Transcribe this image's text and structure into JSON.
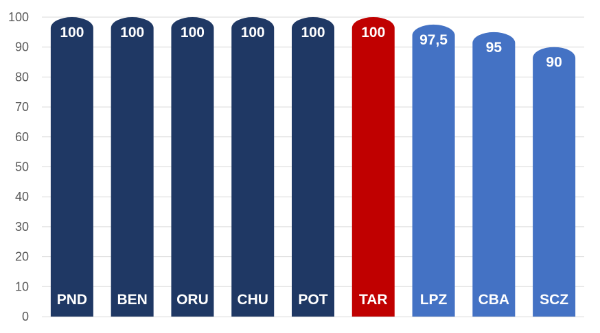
{
  "chart_data": {
    "type": "bar",
    "categories": [
      "PND",
      "BEN",
      "ORU",
      "CHU",
      "POT",
      "TAR",
      "LPZ",
      "CBA",
      "SCZ"
    ],
    "values": [
      100,
      100,
      100,
      100,
      100,
      100,
      97.5,
      95,
      90
    ],
    "value_labels": [
      "100",
      "100",
      "100",
      "100",
      "100",
      "100",
      "97,5",
      "95",
      "90"
    ],
    "bar_colors": [
      "#1f3864",
      "#1f3864",
      "#1f3864",
      "#1f3864",
      "#1f3864",
      "#c00000",
      "#4472c4",
      "#4472c4",
      "#4472c4"
    ],
    "ylim": [
      0,
      100
    ],
    "yticks": [
      0,
      10,
      20,
      30,
      40,
      50,
      60,
      70,
      80,
      90,
      100
    ],
    "grid": true,
    "legend": "none",
    "title": "",
    "xlabel": "",
    "ylabel": ""
  }
}
